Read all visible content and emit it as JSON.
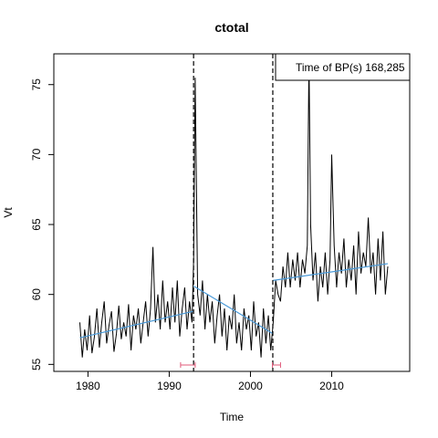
{
  "chart_data": {
    "type": "line",
    "title": "ctotal",
    "xlabel": "Time",
    "ylabel": "Vt",
    "xlim": [
      1975.8,
      2019.6
    ],
    "ylim": [
      54.5,
      77.2
    ],
    "x_ticks": [
      1980,
      1990,
      2000,
      2010
    ],
    "y_ticks": [
      55,
      60,
      65,
      70,
      75
    ],
    "legend": {
      "text": "Time of BP(s) 168,285",
      "position": "top-right"
    },
    "breakpoints": [
      1993.0,
      2002.75
    ],
    "confidence_intervals": [
      {
        "from": 1991.4,
        "to": 1993.2
      },
      {
        "from": 2002.7,
        "to": 2003.7
      }
    ],
    "trend_segments": [
      {
        "x": [
          1979.0,
          1993.0
        ],
        "y": [
          56.9,
          58.8
        ]
      },
      {
        "x": [
          1993.0,
          2002.75
        ],
        "y": [
          60.6,
          57.2
        ]
      },
      {
        "x": [
          2002.75,
          2016.9
        ],
        "y": [
          61.0,
          62.2
        ]
      }
    ],
    "series": [
      {
        "x": [
          1979.0,
          1979.3,
          1979.6,
          1979.9,
          1980.2,
          1980.5,
          1980.8,
          1981.1,
          1981.4,
          1981.7,
          1982.0,
          1982.3,
          1982.6,
          1982.9,
          1983.2,
          1983.5,
          1983.8,
          1984.1,
          1984.4,
          1984.7,
          1985.0,
          1985.3,
          1985.6,
          1985.9,
          1986.2,
          1986.5,
          1986.8,
          1987.1,
          1987.4,
          1987.7,
          1988.0,
          1988.3,
          1988.6,
          1988.9,
          1989.2,
          1989.5,
          1989.8,
          1990.1,
          1990.4,
          1990.7,
          1991.0,
          1991.3,
          1991.6,
          1991.9,
          1992.2,
          1992.5,
          1992.8,
          1993.0,
          1993.2,
          1993.5,
          1993.8,
          1994.1,
          1994.4,
          1994.7,
          1995.0,
          1995.3,
          1995.6,
          1995.9,
          1996.2,
          1996.5,
          1996.8,
          1997.1,
          1997.4,
          1997.7,
          1998.0,
          1998.3,
          1998.6,
          1998.9,
          1999.2,
          1999.5,
          1999.8,
          2000.1,
          2000.4,
          2000.7,
          2001.0,
          2001.3,
          2001.6,
          2001.9,
          2002.2,
          2002.5,
          2002.8,
          2003.1,
          2003.4,
          2003.7,
          2004.0,
          2004.3,
          2004.6,
          2004.9,
          2005.2,
          2005.5,
          2005.8,
          2006.1,
          2006.4,
          2006.7,
          2007.0,
          2007.2,
          2007.4,
          2007.7,
          2008.0,
          2008.3,
          2008.6,
          2008.9,
          2009.2,
          2009.5,
          2009.8,
          2010.0,
          2010.3,
          2010.6,
          2010.9,
          2011.2,
          2011.5,
          2011.8,
          2012.1,
          2012.4,
          2012.7,
          2013.0,
          2013.3,
          2013.6,
          2013.9,
          2014.2,
          2014.5,
          2014.8,
          2015.1,
          2015.4,
          2015.7,
          2016.0,
          2016.3,
          2016.6,
          2016.9
        ],
        "y": [
          58.0,
          55.5,
          57.5,
          56.0,
          58.5,
          55.8,
          57.0,
          59.0,
          56.2,
          58.0,
          59.5,
          56.5,
          57.8,
          58.8,
          55.9,
          57.2,
          59.2,
          56.8,
          58.0,
          57.0,
          59.3,
          56.0,
          58.5,
          57.5,
          59.0,
          56.5,
          58.0,
          59.5,
          57.0,
          59.0,
          63.4,
          58.0,
          60.0,
          57.5,
          61.0,
          58.0,
          59.5,
          57.5,
          60.5,
          58.0,
          61.0,
          57.0,
          59.0,
          60.5,
          57.5,
          59.5,
          58.0,
          62.5,
          75.5,
          60.0,
          58.5,
          61.0,
          57.5,
          60.0,
          58.0,
          59.5,
          56.5,
          58.5,
          60.0,
          57.0,
          59.0,
          56.0,
          58.5,
          57.5,
          60.0,
          56.5,
          58.0,
          56.0,
          59.0,
          57.5,
          58.5,
          56.0,
          59.5,
          57.0,
          58.0,
          55.5,
          59.0,
          56.5,
          58.5,
          56.0,
          58.0,
          61.0,
          60.0,
          59.5,
          62.0,
          60.5,
          63.0,
          60.5,
          62.5,
          61.0,
          63.0,
          60.5,
          62.5,
          61.5,
          63.5,
          77.0,
          65.0,
          61.0,
          63.0,
          59.5,
          62.0,
          60.5,
          63.0,
          60.0,
          62.5,
          70.0,
          63.5,
          60.5,
          63.0,
          61.5,
          64.0,
          60.5,
          62.5,
          61.0,
          63.5,
          60.0,
          64.5,
          61.5,
          63.0,
          62.0,
          65.5,
          61.5,
          63.0,
          60.0,
          64.0,
          61.0,
          64.5,
          60.0,
          62.0
        ]
      }
    ]
  }
}
